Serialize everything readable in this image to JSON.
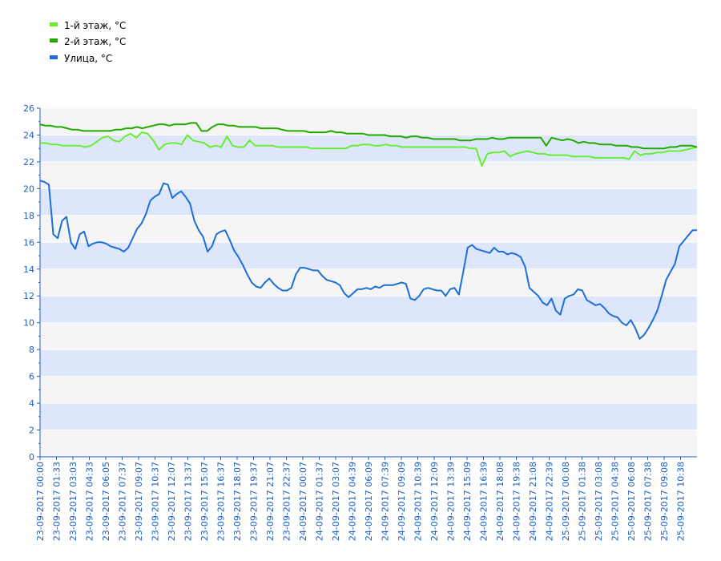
{
  "chart_data": {
    "type": "line",
    "title": "",
    "xlabel": "",
    "ylabel": "",
    "ylim": [
      0,
      26
    ],
    "yticks": [
      0,
      2,
      4,
      6,
      8,
      10,
      12,
      14,
      16,
      18,
      20,
      22,
      24,
      26
    ],
    "grid": true,
    "legend_position": "top-left",
    "x_start": "23-09-2017 00:00",
    "x_tick_labels": [
      "23-09-2017 00:00",
      "23-09-2017 01:33",
      "23-09-2017 03:03",
      "23-09-2017 04:33",
      "23-09-2017 06:05",
      "23-09-2017 07:37",
      "23-09-2017 09:07",
      "23-09-2017 10:37",
      "23-09-2017 12:07",
      "23-09-2017 13:37",
      "23-09-2017 15:07",
      "23-09-2017 16:37",
      "23-09-2017 18:07",
      "23-09-2017 19:37",
      "23-09-2017 21:07",
      "23-09-2017 22:37",
      "24-09-2017 00:07",
      "24-09-2017 01:37",
      "24-09-2017 03:07",
      "24-09-2017 04:39",
      "24-09-2017 06:09",
      "24-09-2017 07:39",
      "24-09-2017 09:09",
      "24-09-2017 10:39",
      "24-09-2017 12:09",
      "24-09-2017 13:39",
      "24-09-2017 15:09",
      "24-09-2017 16:39",
      "24-09-2017 18:08",
      "24-09-2017 19:38",
      "24-09-2017 21:08",
      "24-09-2017 22:39",
      "25-09-2017 00:08",
      "25-09-2017 01:38",
      "25-09-2017 03:08",
      "25-09-2017 04:38",
      "25-09-2017 06:08",
      "25-09-2017 07:38",
      "25-09-2017 09:08",
      "25-09-2017 10:38"
    ],
    "series": [
      {
        "name": "1-й этаж, °C",
        "color": "#66ee33",
        "values": [
          23.4,
          23.4,
          23.3,
          23.3,
          23.2,
          23.2,
          23.2,
          23.2,
          23.1,
          23.2,
          23.5,
          23.8,
          23.9,
          23.6,
          23.5,
          23.9,
          24.1,
          23.8,
          24.2,
          24.1,
          23.6,
          22.9,
          23.3,
          23.4,
          23.4,
          23.3,
          24.0,
          23.6,
          23.5,
          23.4,
          23.1,
          23.2,
          23.1,
          23.9,
          23.2,
          23.1,
          23.1,
          23.6,
          23.2,
          23.2,
          23.2,
          23.2,
          23.1,
          23.1,
          23.1,
          23.1,
          23.1,
          23.1,
          23.0,
          23.0,
          23.0,
          23.0,
          23.0,
          23.0,
          23.0,
          23.2,
          23.2,
          23.3,
          23.3,
          23.2,
          23.2,
          23.3,
          23.2,
          23.2,
          23.1,
          23.1,
          23.1,
          23.1,
          23.1,
          23.1,
          23.1,
          23.1,
          23.1,
          23.1,
          23.1,
          23.1,
          23.0,
          23.0,
          21.7,
          22.6,
          22.7,
          22.7,
          22.8,
          22.4,
          22.6,
          22.7,
          22.8,
          22.7,
          22.6,
          22.6,
          22.5,
          22.5,
          22.5,
          22.5,
          22.4,
          22.4,
          22.4,
          22.4,
          22.3,
          22.3,
          22.3,
          22.3,
          22.3,
          22.3,
          22.2,
          22.8,
          22.5,
          22.6,
          22.6,
          22.7,
          22.7,
          22.8,
          22.8,
          22.8,
          22.9,
          23.0,
          23.1
        ]
      },
      {
        "name": "2-й этаж, °C",
        "color": "#22aa00",
        "values": [
          24.8,
          24.7,
          24.7,
          24.6,
          24.6,
          24.5,
          24.4,
          24.4,
          24.3,
          24.3,
          24.3,
          24.3,
          24.3,
          24.3,
          24.4,
          24.4,
          24.5,
          24.5,
          24.6,
          24.5,
          24.6,
          24.7,
          24.8,
          24.8,
          24.7,
          24.8,
          24.8,
          24.8,
          24.9,
          24.9,
          24.3,
          24.3,
          24.6,
          24.8,
          24.8,
          24.7,
          24.7,
          24.6,
          24.6,
          24.6,
          24.6,
          24.5,
          24.5,
          24.5,
          24.5,
          24.4,
          24.3,
          24.3,
          24.3,
          24.3,
          24.2,
          24.2,
          24.2,
          24.2,
          24.3,
          24.2,
          24.2,
          24.1,
          24.1,
          24.1,
          24.1,
          24.0,
          24.0,
          24.0,
          24.0,
          23.9,
          23.9,
          23.9,
          23.8,
          23.9,
          23.9,
          23.8,
          23.8,
          23.7,
          23.7,
          23.7,
          23.7,
          23.7,
          23.6,
          23.6,
          23.6,
          23.7,
          23.7,
          23.7,
          23.8,
          23.7,
          23.7,
          23.8,
          23.8,
          23.8,
          23.8,
          23.8,
          23.8,
          23.8,
          23.2,
          23.8,
          23.7,
          23.6,
          23.7,
          23.6,
          23.4,
          23.5,
          23.4,
          23.4,
          23.3,
          23.3,
          23.3,
          23.2,
          23.2,
          23.2,
          23.1,
          23.1,
          23.0,
          23.0,
          23.0,
          23.0,
          23.0,
          23.1,
          23.1,
          23.2,
          23.2,
          23.2,
          23.1
        ]
      },
      {
        "name": "Улица, °C",
        "color": "#1c6fd8",
        "values": [
          20.6,
          20.5,
          20.3,
          16.6,
          16.3,
          17.6,
          17.9,
          16.0,
          15.5,
          16.6,
          16.8,
          15.7,
          15.9,
          16.0,
          16.0,
          15.9,
          15.7,
          15.6,
          15.5,
          15.3,
          15.6,
          16.3,
          17.0,
          17.4,
          18.1,
          19.1,
          19.4,
          19.6,
          20.4,
          20.3,
          19.3,
          19.6,
          19.8,
          19.4,
          18.9,
          17.6,
          16.9,
          16.4,
          15.3,
          15.7,
          16.6,
          16.8,
          16.9,
          16.2,
          15.4,
          14.9,
          14.3,
          13.6,
          13.0,
          12.7,
          12.6,
          13.0,
          13.3,
          12.9,
          12.6,
          12.4,
          12.4,
          12.6,
          13.6,
          14.1,
          14.1,
          14.0,
          13.9,
          13.9,
          13.5,
          13.2,
          13.1,
          13.0,
          12.8,
          12.2,
          11.9,
          12.2,
          12.5,
          12.5,
          12.6,
          12.5,
          12.7,
          12.6,
          12.8,
          12.8,
          12.8,
          12.9,
          13.0,
          12.9,
          11.8,
          11.7,
          12.0,
          12.5,
          12.6,
          12.5,
          12.4,
          12.4,
          12.0,
          12.5,
          12.6,
          12.1,
          13.8,
          15.6,
          15.8,
          15.5,
          15.4,
          15.3,
          15.2,
          15.6,
          15.3,
          15.3,
          15.1,
          15.2,
          15.1,
          14.9,
          14.2,
          12.6,
          12.3,
          12.0,
          11.5,
          11.3,
          11.8,
          10.9,
          10.6,
          11.8,
          12.0,
          12.1,
          12.5,
          12.4,
          11.7,
          11.5,
          11.3,
          11.4,
          11.1,
          10.7,
          10.5,
          10.4,
          10.0,
          9.8,
          10.2,
          9.6,
          8.8,
          9.1,
          9.6,
          10.2,
          10.9,
          12.0,
          13.2,
          13.8,
          14.4,
          15.7,
          16.1,
          16.5,
          16.9,
          16.9
        ]
      }
    ]
  }
}
